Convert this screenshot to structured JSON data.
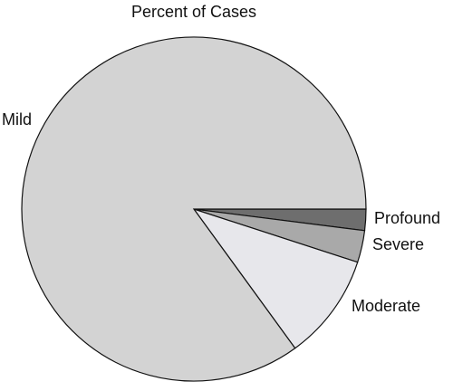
{
  "chart_data": {
    "type": "pie",
    "title": "Percent of Cases",
    "categories": [
      "Profound",
      "Severe",
      "Moderate",
      "Mild"
    ],
    "values": [
      2,
      3,
      10,
      85
    ],
    "colors": [
      "#6e6e6e",
      "#a9a9a9",
      "#e7e7eb",
      "#d3d3d3"
    ]
  }
}
